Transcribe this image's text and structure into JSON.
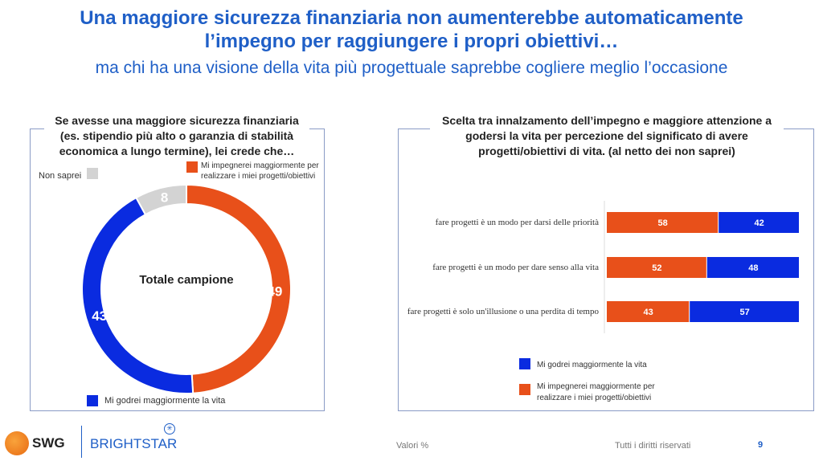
{
  "title": "Una maggiore sicurezza finanziaria non aumenterebbe automaticamente l’impegno per raggiungere i propri obiettivi…",
  "subtitle": "ma chi ha una visione della vita più progettuale saprebbe cogliere meglio l’occasione",
  "colors": {
    "orange": "#E8501A",
    "blue": "#0A2BE0",
    "grey": "#D3D3D3",
    "title": "#1F5FC7"
  },
  "chart_data": [
    {
      "type": "pie",
      "title": "Se avesse una maggiore sicurezza finanziaria (es. stipendio più alto o garanzia di stabilità economica a lungo termine), lei crede che…",
      "center_label": "Totale campione",
      "slices": [
        {
          "name": "Mi impegnerei maggiormente per realizzare i miei progetti/obiettivi",
          "value": 49,
          "color": "#E8501A"
        },
        {
          "name": "Mi godrei maggiormente la vita",
          "value": 43,
          "color": "#0A2BE0"
        },
        {
          "name": "Non saprei",
          "value": 8,
          "color": "#D3D3D3"
        }
      ]
    },
    {
      "type": "bar",
      "stacked": true,
      "orientation": "horizontal",
      "title": "Scelta tra innalzamento dell’impegno e maggiore attenzione a godersi la vita per percezione del significato di avere progetti/obiettivi di vita. (al netto dei non saprei)",
      "categories": [
        "fare progetti è un modo per darsi delle priorità",
        "fare progetti è un modo per dare senso alla vita",
        "fare progetti è solo un'illusione o una perdita di tempo"
      ],
      "series": [
        {
          "name": "Mi impegnerei maggiormente per realizzare i miei progetti/obiettivi",
          "values": [
            58,
            52,
            43
          ],
          "color": "#E8501A"
        },
        {
          "name": "Mi godrei maggiormente la vita",
          "values": [
            42,
            48,
            57
          ],
          "color": "#0A2BE0"
        }
      ],
      "xlim": [
        0,
        100
      ],
      "legend": "bottom"
    }
  ],
  "footer": {
    "logo1": "SWG",
    "logo2": "BRIGHTSTAR",
    "note": "Valori %",
    "rights": "Tutti i diritti riservati",
    "page": "9"
  }
}
